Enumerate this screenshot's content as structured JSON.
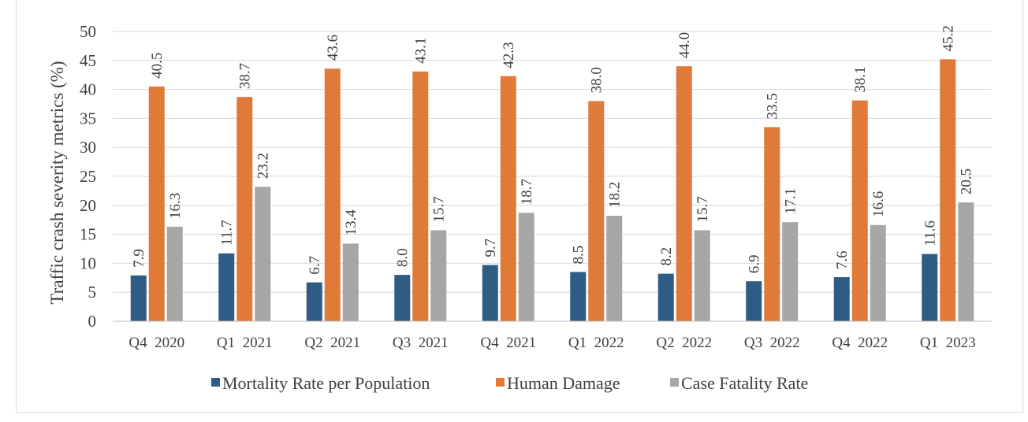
{
  "chart_data": {
    "type": "bar",
    "ylabel": "Traffic crash severity metrics (%)",
    "xlabel": "",
    "ylim": [
      0,
      50
    ],
    "ytick_step": 5,
    "grid": true,
    "legend_position": "bottom",
    "categories": [
      "Q4  2020",
      "Q1  2021",
      "Q2  2021",
      "Q3  2021",
      "Q4  2021",
      "Q1  2022",
      "Q2  2022",
      "Q3  2022",
      "Q4  2022",
      "Q1  2023"
    ],
    "series": [
      {
        "name": "Mortality Rate per Population",
        "color": "#2e5c84",
        "values": [
          7.9,
          11.7,
          6.7,
          8.0,
          9.7,
          8.5,
          8.2,
          6.9,
          7.6,
          11.6
        ],
        "labels": [
          "7.9",
          "11.7",
          "6.7",
          "8.0",
          "9.7",
          "8.5",
          "8.2",
          "6.9",
          "7.6",
          "11.6"
        ]
      },
      {
        "name": "Human Damage",
        "color": "#e07a38",
        "values": [
          40.5,
          38.7,
          43.6,
          43.1,
          42.3,
          38.0,
          44.0,
          33.5,
          38.1,
          45.2
        ],
        "labels": [
          "40.5",
          "38.7",
          "43.6",
          "43.1",
          "42.3",
          "38.0",
          "44.0",
          "33.5",
          "38.1",
          "45.2"
        ]
      },
      {
        "name": "Case Fatality Rate",
        "color": "#a6a6a6",
        "values": [
          16.3,
          23.2,
          13.4,
          15.7,
          18.7,
          18.2,
          15.7,
          17.1,
          16.6,
          20.5
        ],
        "labels": [
          "16.3",
          "23.2",
          "13.4",
          "15.7",
          "18.7",
          "18.2",
          "15.7",
          "17.1",
          "16.6",
          "20.5"
        ]
      }
    ]
  }
}
